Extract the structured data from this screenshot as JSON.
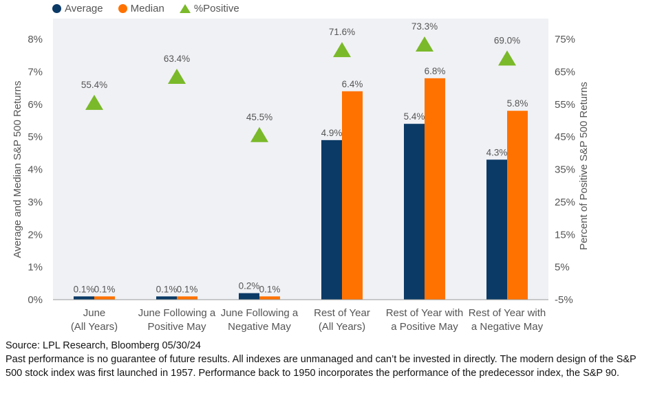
{
  "chart_data": {
    "type": "bar",
    "categories": [
      [
        "June",
        "(All Years)"
      ],
      [
        "June Following a",
        "Positive May"
      ],
      [
        "June Following a",
        "Negative May"
      ],
      [
        "Rest of Year",
        "(All Years)"
      ],
      [
        "Rest of Year with",
        "a Positive May"
      ],
      [
        "Rest of Year with",
        "a Negative May"
      ]
    ],
    "series": [
      {
        "name": "Average",
        "axis": "left",
        "color": "#0b3a66",
        "values": [
          0.1,
          0.1,
          0.2,
          4.9,
          5.4,
          4.3
        ],
        "labels": [
          "0.1%",
          "0.1%",
          "0.2%",
          "4.9%",
          "5.4%",
          "4.3%"
        ]
      },
      {
        "name": "Median",
        "axis": "left",
        "color": "#ff7200",
        "values": [
          0.1,
          0.1,
          0.1,
          6.4,
          6.8,
          5.8
        ],
        "labels": [
          "0.1%",
          "0.1%",
          "0.1%",
          "6.4%",
          "6.8%",
          "5.8%"
        ]
      },
      {
        "name": "%Positive",
        "axis": "right",
        "type": "scatter",
        "marker": "triangle",
        "color": "#7ab929",
        "values": [
          55.4,
          63.4,
          45.5,
          71.6,
          73.3,
          69.0
        ],
        "labels": [
          "55.4%",
          "63.4%",
          "45.5%",
          "71.6%",
          "73.3%",
          "69.0%"
        ]
      }
    ],
    "ylabel": "Average and Median S&P 500 Returns",
    "ylabel_right": "Percent of Positive S&P 500 Returns",
    "ylim": [
      0,
      8
    ],
    "ylim_right": [
      -5,
      75
    ],
    "yticks": [
      "0%",
      "1%",
      "2%",
      "3%",
      "4%",
      "5%",
      "6%",
      "7%",
      "8%"
    ],
    "yticks_right": [
      "-5%",
      "5%",
      "15%",
      "25%",
      "35%",
      "45%",
      "55%",
      "65%",
      "75%"
    ],
    "legend_position": "top-left",
    "grid": false,
    "plot_background": "#f0f1f5"
  },
  "footer": {
    "source": "Source: LPL Research, Bloomberg 05/30/24",
    "disclaimer": "Past performance is no guarantee of future results. All indexes are unmanaged and can’t be invested in directly. The modern design of the S&P 500 stock index was first launched in 1957. Performance back to 1950 incorporates the performance of the predecessor index, the S&P 90."
  }
}
